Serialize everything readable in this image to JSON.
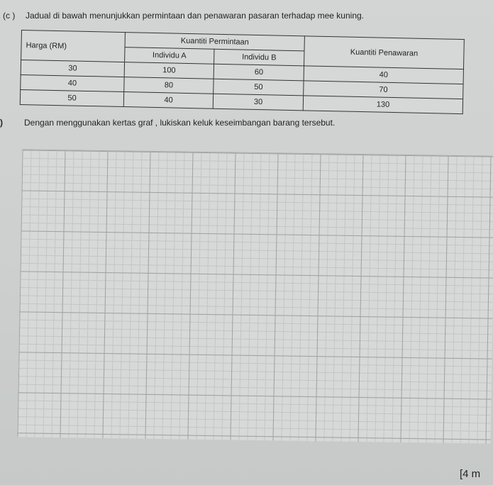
{
  "question": {
    "label": "(c )",
    "intro": "Jadual di bawah menunjukkan permintaan dan penawaran pasaran terhadap mee kuning.",
    "table": {
      "headers": {
        "price": "Harga (RM)",
        "demand": "Kuantiti Permintaan",
        "individual_a": "Individu A",
        "individual_b": "Individu B",
        "supply": "Kuantiti Penawaran"
      },
      "rows": [
        {
          "price": "30",
          "a": "100",
          "b": "60",
          "supply": "40"
        },
        {
          "price": "40",
          "a": "80",
          "b": "50",
          "supply": "70"
        },
        {
          "price": "50",
          "a": "40",
          "b": "30",
          "supply": "130"
        }
      ]
    },
    "sub_label": ")",
    "sub_text": "Dengan menggunakan kertas graf , lukiskan keluk keseimbangan barang tersebut.",
    "marks": "[4 m"
  }
}
